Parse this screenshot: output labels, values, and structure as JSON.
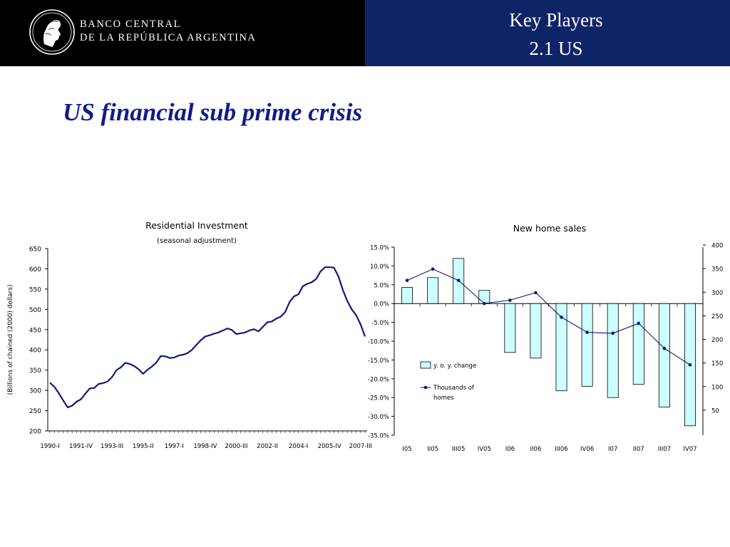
{
  "header": {
    "bank_line1": "BANCO CENTRAL",
    "bank_line2": "DE LA REPÚBLICA ARGENTINA",
    "section_title": "Key Players",
    "section_subtitle": "2.1 US",
    "left_bg": "#000000",
    "right_bg": "#0f2466",
    "logo_icon": "bank-seal-icon"
  },
  "page": {
    "title": "US financial sub prime crisis",
    "title_color": "#101c8c"
  },
  "chart_data": [
    {
      "type": "line",
      "title": "Residential Investment",
      "subtitle": "(seasonal adjustment)",
      "ylabel": "(Billions of chained (2000) dollars)",
      "ylim": [
        200,
        650
      ],
      "y_ticks": [
        200,
        250,
        300,
        350,
        400,
        450,
        500,
        550,
        600,
        650
      ],
      "x_tick_labels": [
        "1990-I",
        "1991-IV",
        "1993-III",
        "1995-II",
        "1997-I",
        "1998-IV",
        "2000-III",
        "2002-II",
        "2004-I",
        "2005-IV",
        "2007-III"
      ],
      "x_tick_index": [
        0,
        7,
        14,
        21,
        28,
        35,
        42,
        49,
        56,
        63,
        70
      ],
      "line_color": "#0d1a7a",
      "values": [
        319,
        309,
        293,
        275,
        258,
        262,
        272,
        278,
        292,
        305,
        306,
        316,
        318,
        322,
        333,
        350,
        357,
        368,
        365,
        360,
        352,
        341,
        351,
        359,
        369,
        385,
        384,
        380,
        381,
        386,
        388,
        392,
        400,
        412,
        424,
        433,
        436,
        440,
        443,
        448,
        453,
        449,
        439,
        441,
        443,
        448,
        451,
        446,
        457,
        468,
        470,
        477,
        482,
        493,
        518,
        532,
        537,
        557,
        563,
        567,
        575,
        594,
        604,
        604,
        603,
        582,
        548,
        521,
        500,
        486,
        463,
        433
      ]
    },
    {
      "type": "bar",
      "title": "New home sales",
      "categories": [
        "I05",
        "II05",
        "III05",
        "IV05",
        "I06",
        "II06",
        "III06",
        "IV06",
        "I07",
        "II07",
        "III07",
        "IV07"
      ],
      "left_axis": {
        "ylim": [
          -35,
          15
        ],
        "ticks": [
          "15.0%",
          "10.0%",
          "5.0%",
          "0.0%",
          "-5.0%",
          "-10.0%",
          "-15.0%",
          "-20.0%",
          "-25.0%",
          "-30.0%",
          "-35.0%"
        ]
      },
      "right_axis": {
        "ylim": [
          0,
          400
        ],
        "ticks": [
          "400",
          "350",
          "300",
          "250",
          "200",
          "150",
          "100",
          "50"
        ]
      },
      "series": [
        {
          "name": "y. o. y. change",
          "type": "bar",
          "axis": "left",
          "color": "#ccffff",
          "values": [
            4.3,
            6.9,
            12.0,
            3.5,
            -13.0,
            -14.5,
            -23.2,
            -22.0,
            -25.0,
            -21.5,
            -27.5,
            -32.5
          ]
        },
        {
          "name": "Thousands of homes",
          "type": "line",
          "axis": "right",
          "color": "#0d1a7a",
          "values": [
            325,
            349,
            325,
            276,
            283,
            299,
            247,
            215,
            213,
            234,
            181,
            146
          ]
        }
      ],
      "legend": "center-left"
    }
  ]
}
